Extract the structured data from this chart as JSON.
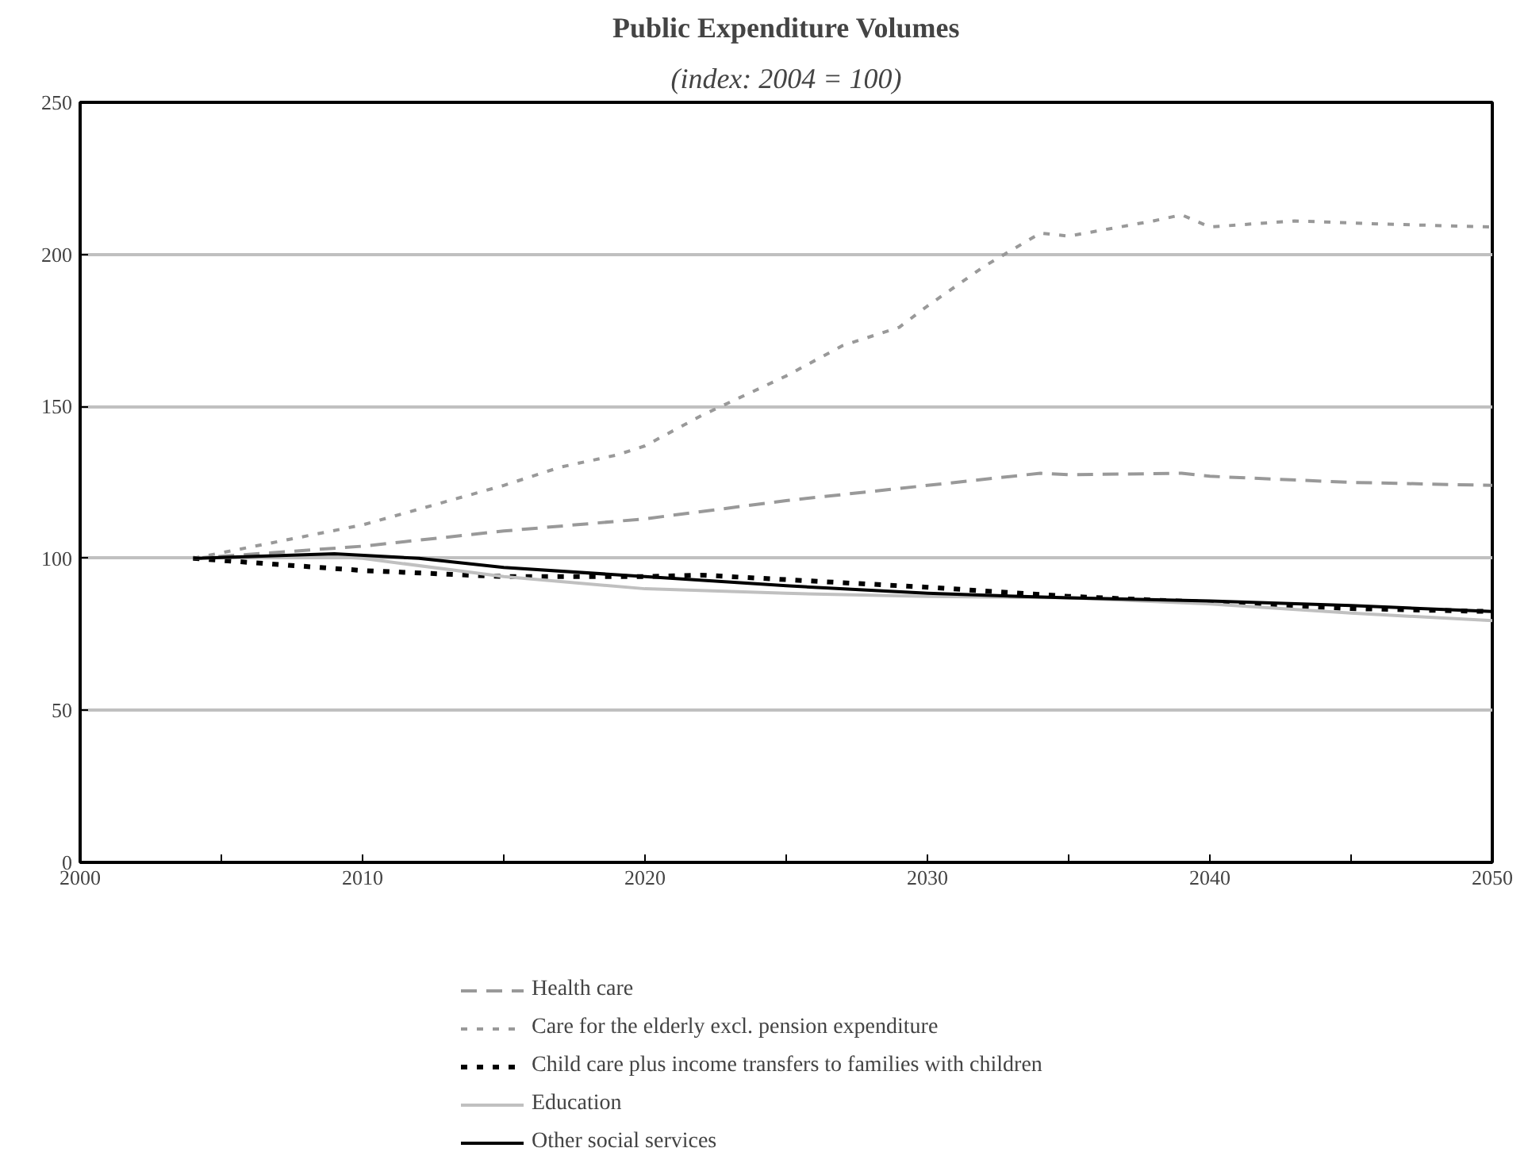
{
  "chart_data": {
    "type": "line",
    "title": "Public Expenditure Volumes",
    "subtitle": "(index: 2004 = 100)",
    "xlim": [
      2000,
      2050
    ],
    "xticks": [
      2000,
      {
        "value": 2005,
        "label": null
      },
      2010,
      {
        "value": 2015,
        "label": null
      },
      2020,
      {
        "value": 2025,
        "label": null
      },
      2030,
      {
        "value": 2035,
        "label": null
      },
      2040,
      {
        "value": 2045,
        "label": null
      },
      2050
    ],
    "ylim": [
      0,
      250
    ],
    "yticks": [
      0,
      50,
      100,
      150,
      200,
      250
    ],
    "grid": "y",
    "legend": "bottom",
    "marker": "none",
    "series": [
      {
        "name": "Health care",
        "color": "#999999",
        "line_style": "dashed",
        "x": [
          2004,
          2010,
          2015,
          2020,
          2025,
          2030,
          2034,
          2035,
          2039,
          2040,
          2045,
          2050
        ],
        "values": [
          100,
          104,
          109,
          113,
          119,
          124,
          128,
          127.5,
          128,
          127,
          125,
          124
        ]
      },
      {
        "name": "Care for the elderly excl. pension expenditure",
        "color": "#999999",
        "line_style": "dotted",
        "x": [
          2004,
          2010,
          2015,
          2017,
          2019,
          2020,
          2022,
          2025,
          2027,
          2029,
          2030,
          2032,
          2034,
          2035,
          2038,
          2039,
          2040,
          2043,
          2046,
          2050
        ],
        "values": [
          100,
          111,
          124,
          130,
          134,
          137,
          147,
          160,
          170,
          176,
          183,
          196,
          207,
          206,
          211,
          213,
          209,
          211,
          210,
          209
        ]
      },
      {
        "name": "Child care plus income transfers to families with children",
        "color": "#000000",
        "line_style": "dotted",
        "x": [
          2004,
          2010,
          2015,
          2020,
          2022,
          2025,
          2030,
          2035,
          2040,
          2045,
          2050
        ],
        "values": [
          100,
          96,
          94,
          94,
          94.5,
          93,
          90.5,
          87.5,
          85.5,
          83.5,
          82.5
        ]
      },
      {
        "name": "Education",
        "color": "#c0c0c0",
        "line_style": "solid",
        "x": [
          2004,
          2008,
          2010,
          2015,
          2020,
          2025,
          2030,
          2035,
          2040,
          2045,
          2050
        ],
        "values": [
          100,
          101,
          100,
          94,
          90,
          88.5,
          87.5,
          87,
          85,
          82,
          79.5
        ]
      },
      {
        "name": "Other social services",
        "color": "#000000",
        "line_style": "solid",
        "x": [
          2004,
          2009,
          2012,
          2015,
          2020,
          2025,
          2030,
          2035,
          2040,
          2045,
          2050
        ],
        "values": [
          100,
          101.5,
          100,
          97,
          94,
          91,
          88.5,
          87,
          86,
          84.5,
          82.5
        ]
      }
    ]
  }
}
